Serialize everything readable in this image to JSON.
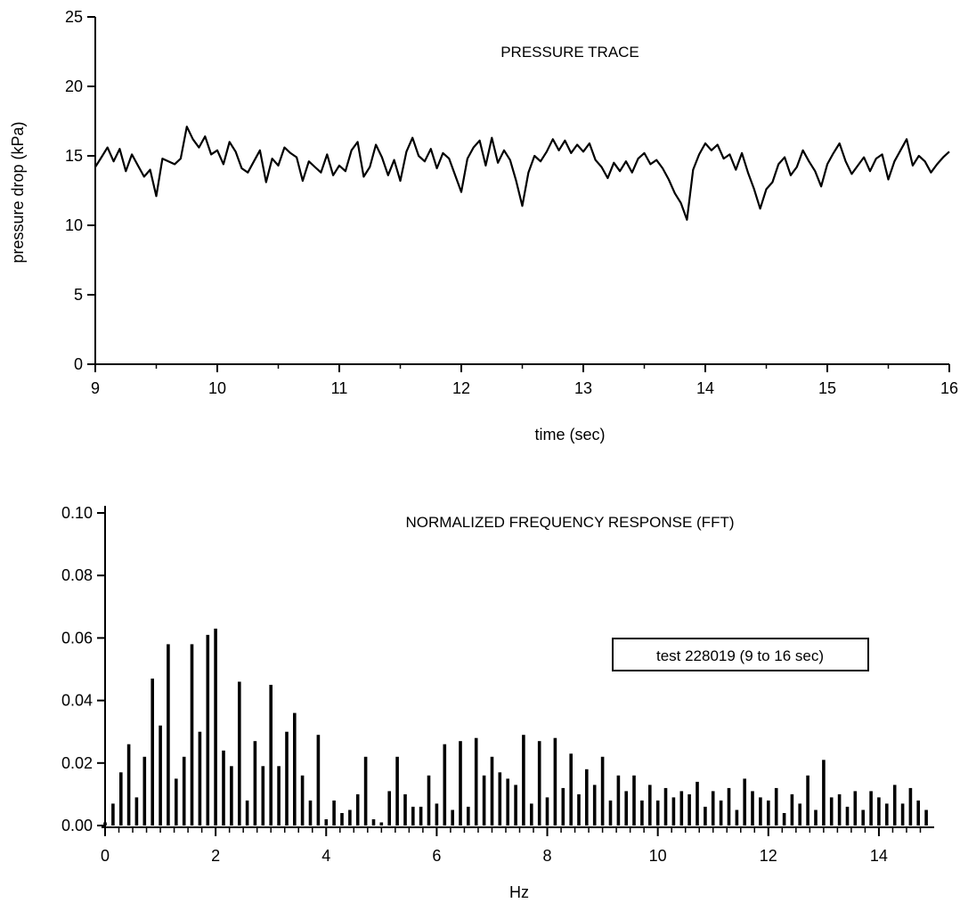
{
  "chart_data": [
    {
      "type": "line",
      "title": "PRESSURE TRACE",
      "xlabel": "time (sec)",
      "ylabel": "pressure drop (kPa)",
      "xlim": [
        9,
        16
      ],
      "ylim": [
        0,
        25
      ],
      "x_ticks": [
        9,
        10,
        11,
        12,
        13,
        14,
        15,
        16
      ],
      "y_ticks": [
        0,
        5,
        10,
        15,
        20,
        25
      ],
      "grid": false,
      "series": [
        {
          "x": [
            9.0,
            9.05,
            9.1,
            9.15,
            9.2,
            9.25,
            9.3,
            9.35,
            9.4,
            9.45,
            9.5,
            9.55,
            9.6,
            9.65,
            9.7,
            9.75,
            9.8,
            9.85,
            9.9,
            9.95,
            10.0,
            10.05,
            10.1,
            10.15,
            10.2,
            10.25,
            10.3,
            10.35,
            10.4,
            10.45,
            10.5,
            10.55,
            10.6,
            10.65,
            10.7,
            10.75,
            10.8,
            10.85,
            10.9,
            10.95,
            11.0,
            11.05,
            11.1,
            11.15,
            11.2,
            11.25,
            11.3,
            11.35,
            11.4,
            11.45,
            11.5,
            11.55,
            11.6,
            11.65,
            11.7,
            11.75,
            11.8,
            11.85,
            11.9,
            11.95,
            12.0,
            12.05,
            12.1,
            12.15,
            12.2,
            12.25,
            12.3,
            12.35,
            12.4,
            12.45,
            12.5,
            12.55,
            12.6,
            12.65,
            12.7,
            12.75,
            12.8,
            12.85,
            12.9,
            12.95,
            13.0,
            13.05,
            13.1,
            13.15,
            13.2,
            13.25,
            13.3,
            13.35,
            13.4,
            13.45,
            13.5,
            13.55,
            13.6,
            13.65,
            13.7,
            13.75,
            13.8,
            13.85,
            13.9,
            13.95,
            14.0,
            14.05,
            14.1,
            14.15,
            14.2,
            14.25,
            14.3,
            14.35,
            14.4,
            14.45,
            14.5,
            14.55,
            14.6,
            14.65,
            14.7,
            14.75,
            14.8,
            14.85,
            14.9,
            14.95,
            15.0,
            15.05,
            15.1,
            15.15,
            15.2,
            15.25,
            15.3,
            15.35,
            15.4,
            15.45,
            15.5,
            15.55,
            15.6,
            15.65,
            15.7,
            15.75,
            15.8,
            15.85,
            15.9,
            15.95,
            16.0
          ],
          "y": [
            14.2,
            14.9,
            15.6,
            14.6,
            15.5,
            13.9,
            15.1,
            14.3,
            13.5,
            14.0,
            12.1,
            14.8,
            14.6,
            14.4,
            14.8,
            17.1,
            16.2,
            15.6,
            16.4,
            15.1,
            15.4,
            14.4,
            16.0,
            15.3,
            14.1,
            13.8,
            14.6,
            15.4,
            13.1,
            14.8,
            14.3,
            15.6,
            15.2,
            14.9,
            13.2,
            14.6,
            14.2,
            13.8,
            15.1,
            13.6,
            14.3,
            13.9,
            15.4,
            16.0,
            13.5,
            14.2,
            15.8,
            14.9,
            13.6,
            14.7,
            13.2,
            15.3,
            16.3,
            15.0,
            14.6,
            15.5,
            14.1,
            15.2,
            14.8,
            13.6,
            12.4,
            14.8,
            15.6,
            16.1,
            14.3,
            16.3,
            14.5,
            15.4,
            14.7,
            13.2,
            11.4,
            13.8,
            15.0,
            14.6,
            15.3,
            16.2,
            15.4,
            16.1,
            15.2,
            15.8,
            15.3,
            15.9,
            14.7,
            14.2,
            13.4,
            14.5,
            13.9,
            14.6,
            13.8,
            14.8,
            15.2,
            14.4,
            14.7,
            14.1,
            13.3,
            12.3,
            11.6,
            10.4,
            14.0,
            15.1,
            15.9,
            15.4,
            15.8,
            14.8,
            15.1,
            14.0,
            15.2,
            13.8,
            12.6,
            11.2,
            12.6,
            13.1,
            14.4,
            14.9,
            13.6,
            14.2,
            15.4,
            14.6,
            13.9,
            12.8,
            14.4,
            15.2,
            15.9,
            14.6,
            13.7,
            14.3,
            14.9,
            13.9,
            14.8,
            15.1,
            13.3,
            14.6,
            15.4,
            16.2,
            14.3,
            15.0,
            14.6,
            13.8,
            14.4,
            14.9,
            15.3
          ]
        }
      ]
    },
    {
      "type": "bar",
      "title": "NORMALIZED FREQUENCY RESPONSE (FFT)",
      "xlabel": "Hz",
      "ylabel": "",
      "xlim": [
        0,
        15
      ],
      "ylim": [
        0,
        0.1
      ],
      "x_ticks": [
        0,
        2,
        4,
        6,
        8,
        10,
        12,
        14
      ],
      "y_ticks": [
        "0.00",
        "0.02",
        "0.04",
        "0.06",
        "0.08",
        "0.10"
      ],
      "grid": false,
      "legend": {
        "text": "test 228019 (9 to 16 sec)",
        "position": "right"
      },
      "series": [
        {
          "x": [
            0.0,
            0.143,
            0.286,
            0.429,
            0.571,
            0.714,
            0.857,
            1.0,
            1.143,
            1.286,
            1.429,
            1.571,
            1.714,
            1.857,
            2.0,
            2.143,
            2.286,
            2.429,
            2.571,
            2.714,
            2.857,
            3.0,
            3.143,
            3.286,
            3.429,
            3.571,
            3.714,
            3.857,
            4.0,
            4.143,
            4.286,
            4.429,
            4.571,
            4.714,
            4.857,
            5.0,
            5.143,
            5.286,
            5.429,
            5.571,
            5.714,
            5.857,
            6.0,
            6.143,
            6.286,
            6.429,
            6.571,
            6.714,
            6.857,
            7.0,
            7.143,
            7.286,
            7.429,
            7.571,
            7.714,
            7.857,
            8.0,
            8.143,
            8.286,
            8.429,
            8.571,
            8.714,
            8.857,
            9.0,
            9.143,
            9.286,
            9.429,
            9.571,
            9.714,
            9.857,
            10.0,
            10.143,
            10.286,
            10.429,
            10.571,
            10.714,
            10.857,
            11.0,
            11.143,
            11.286,
            11.429,
            11.571,
            11.714,
            11.857,
            12.0,
            12.143,
            12.286,
            12.429,
            12.571,
            12.714,
            12.857,
            13.0,
            13.143,
            13.286,
            13.429,
            13.571,
            13.714,
            13.857,
            14.0,
            14.143,
            14.286,
            14.429,
            14.571,
            14.714,
            14.857
          ],
          "y": [
            0.001,
            0.007,
            0.017,
            0.026,
            0.009,
            0.022,
            0.047,
            0.032,
            0.058,
            0.015,
            0.022,
            0.058,
            0.03,
            0.061,
            0.063,
            0.024,
            0.019,
            0.046,
            0.008,
            0.027,
            0.019,
            0.045,
            0.019,
            0.03,
            0.036,
            0.016,
            0.008,
            0.029,
            0.002,
            0.008,
            0.004,
            0.005,
            0.01,
            0.022,
            0.002,
            0.001,
            0.011,
            0.022,
            0.01,
            0.006,
            0.006,
            0.016,
            0.007,
            0.026,
            0.005,
            0.027,
            0.006,
            0.028,
            0.016,
            0.022,
            0.017,
            0.015,
            0.013,
            0.029,
            0.007,
            0.027,
            0.009,
            0.028,
            0.012,
            0.023,
            0.01,
            0.018,
            0.013,
            0.022,
            0.008,
            0.016,
            0.011,
            0.016,
            0.008,
            0.013,
            0.008,
            0.012,
            0.009,
            0.011,
            0.01,
            0.014,
            0.006,
            0.011,
            0.008,
            0.012,
            0.005,
            0.015,
            0.011,
            0.009,
            0.008,
            0.012,
            0.004,
            0.01,
            0.007,
            0.016,
            0.005,
            0.021,
            0.009,
            0.01,
            0.006,
            0.011,
            0.005,
            0.011,
            0.009,
            0.007,
            0.013,
            0.007,
            0.012,
            0.008,
            0.005
          ]
        }
      ]
    }
  ]
}
